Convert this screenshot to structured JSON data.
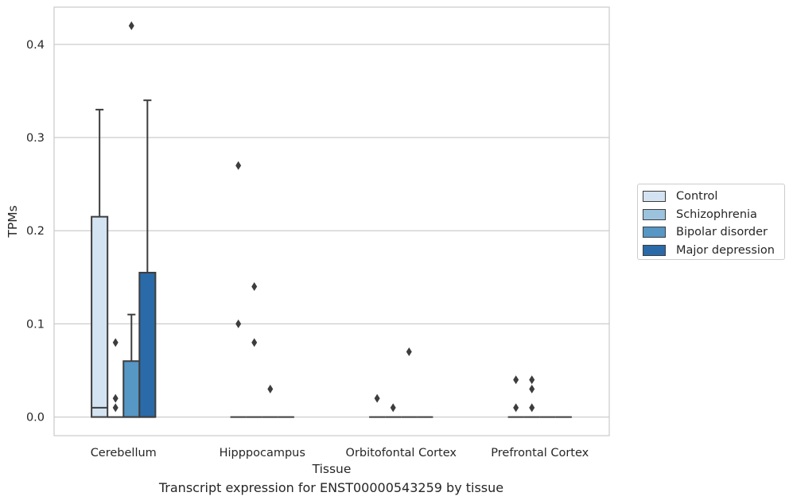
{
  "chart_data": {
    "type": "box",
    "title": "Transcript expression for ENST00000543259 by tissue",
    "xlabel": "Tissue",
    "ylabel": "TPMs",
    "ylim": [
      -0.02,
      0.44
    ],
    "yticks": [
      0.0,
      0.1,
      0.2,
      0.3,
      0.4
    ],
    "ytick_labels": [
      "0.0",
      "0.1",
      "0.2",
      "0.3",
      "0.4"
    ],
    "grid": true,
    "legend_position": "right",
    "categories": [
      "Cerebellum",
      "Hipppocampus",
      "Orbitofontal Cortex",
      "Prefrontal Cortex"
    ],
    "series": [
      {
        "name": "Control",
        "color": "#d4e3f2",
        "boxes": [
          {
            "q1": 0.0,
            "median": 0.01,
            "q3": 0.215,
            "whisker_low": 0.0,
            "whisker_high": 0.33,
            "outliers": []
          },
          {
            "q1": 0.0,
            "median": 0.0,
            "q3": 0.0,
            "whisker_low": 0.0,
            "whisker_high": 0.0,
            "outliers": [
              0.27,
              0.1
            ]
          },
          {
            "q1": 0.0,
            "median": 0.0,
            "q3": 0.0,
            "whisker_low": 0.0,
            "whisker_high": 0.0,
            "outliers": [
              0.02
            ]
          },
          {
            "q1": 0.0,
            "median": 0.0,
            "q3": 0.0,
            "whisker_low": 0.0,
            "whisker_high": 0.0,
            "outliers": [
              0.04,
              0.01
            ]
          }
        ]
      },
      {
        "name": "Schizophrenia",
        "color": "#9cc3de",
        "boxes": [
          {
            "q1": 0.0,
            "median": 0.0,
            "q3": 0.0,
            "whisker_low": 0.0,
            "whisker_high": 0.0,
            "outliers": [
              0.08,
              0.02,
              0.01
            ]
          },
          {
            "q1": 0.0,
            "median": 0.0,
            "q3": 0.0,
            "whisker_low": 0.0,
            "whisker_high": 0.0,
            "outliers": [
              0.14,
              0.08
            ]
          },
          {
            "q1": 0.0,
            "median": 0.0,
            "q3": 0.0,
            "whisker_low": 0.0,
            "whisker_high": 0.0,
            "outliers": [
              0.01
            ]
          },
          {
            "q1": 0.0,
            "median": 0.0,
            "q3": 0.0,
            "whisker_low": 0.0,
            "whisker_high": 0.0,
            "outliers": [
              0.04,
              0.03,
              0.01
            ]
          }
        ]
      },
      {
        "name": "Bipolar disorder",
        "color": "#5697c6",
        "boxes": [
          {
            "q1": 0.0,
            "median": 0.0,
            "q3": 0.06,
            "whisker_low": 0.0,
            "whisker_high": 0.11,
            "outliers": [
              0.42
            ]
          },
          {
            "q1": 0.0,
            "median": 0.0,
            "q3": 0.0,
            "whisker_low": 0.0,
            "whisker_high": 0.0,
            "outliers": [
              0.03
            ]
          },
          {
            "q1": 0.0,
            "median": 0.0,
            "q3": 0.0,
            "whisker_low": 0.0,
            "whisker_high": 0.0,
            "outliers": [
              0.07
            ]
          },
          {
            "q1": 0.0,
            "median": 0.0,
            "q3": 0.0,
            "whisker_low": 0.0,
            "whisker_high": 0.0,
            "outliers": []
          }
        ]
      },
      {
        "name": "Major depression",
        "color": "#2a6aa8",
        "boxes": [
          {
            "q1": 0.0,
            "median": 0.0,
            "q3": 0.155,
            "whisker_low": 0.0,
            "whisker_high": 0.34,
            "outliers": []
          },
          {
            "q1": 0.0,
            "median": 0.0,
            "q3": 0.0,
            "whisker_low": 0.0,
            "whisker_high": 0.0,
            "outliers": []
          },
          {
            "q1": 0.0,
            "median": 0.0,
            "q3": 0.0,
            "whisker_low": 0.0,
            "whisker_high": 0.0,
            "outliers": []
          },
          {
            "q1": 0.0,
            "median": 0.0,
            "q3": 0.0,
            "whisker_low": 0.0,
            "whisker_high": 0.0,
            "outliers": []
          }
        ]
      }
    ]
  }
}
